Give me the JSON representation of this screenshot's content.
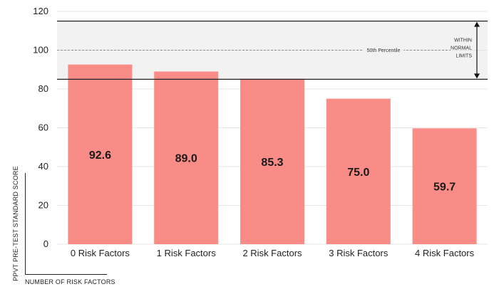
{
  "chart_data": {
    "type": "bar",
    "categories": [
      "0 Risk Factors",
      "1 Risk Factors",
      "2 Risk Factors",
      "3 Risk Factors",
      "4 Risk Factors"
    ],
    "values": [
      92.6,
      89.0,
      85.3,
      75.0,
      59.7
    ],
    "value_labels": [
      "92.6",
      "89.0",
      "85.3",
      "75.0",
      "59.7"
    ],
    "xlabel": "NUMBER OF RISK FACTORS",
    "ylabel": "PPVT PRE-TEST STANDARD SCORE",
    "ylim": [
      0,
      120
    ],
    "yticks": [
      0,
      20,
      40,
      60,
      80,
      100,
      120
    ],
    "normal_range": {
      "lower": 85,
      "upper": 115,
      "label_lines": [
        "WITHIN",
        "NORMAL",
        "LIMITS"
      ]
    },
    "reference_line": {
      "value": 100,
      "label": "50th Percentile"
    },
    "colors": {
      "bar": "#fa8c87",
      "band": "#f2f2f2",
      "plot_bg": "#ffffff",
      "reference": "#777777",
      "line": "#222222"
    }
  }
}
